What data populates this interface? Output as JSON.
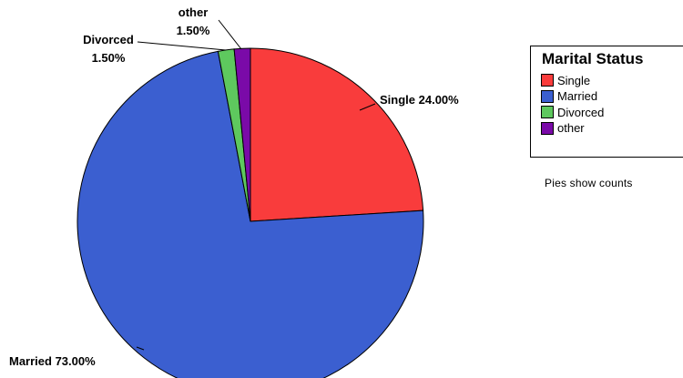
{
  "chart_data": {
    "type": "pie",
    "categories": [
      "Single",
      "Married",
      "Divorced",
      "other"
    ],
    "values": [
      24.0,
      73.0,
      1.5,
      1.5
    ],
    "labels": [
      "24.00%",
      "73.00%",
      "1.50%",
      "1.50%"
    ],
    "colors": [
      "#f93c3c",
      "#3b5fd0",
      "#5ec85e",
      "#7a0aa8"
    ],
    "legend": {
      "title": "Marital Status",
      "position": "right"
    },
    "note": "Pies show counts"
  }
}
